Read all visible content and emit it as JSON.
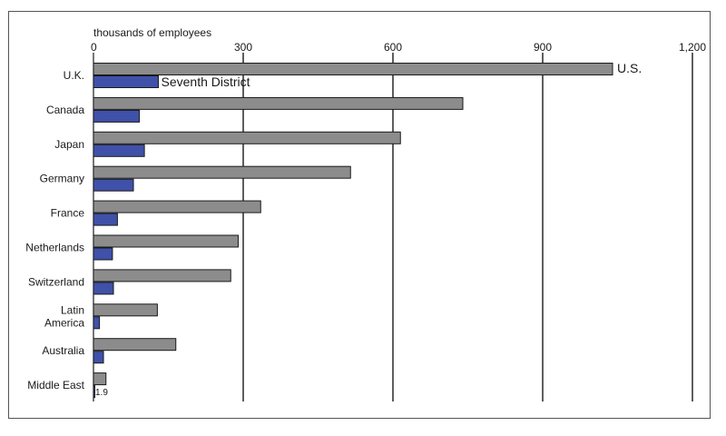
{
  "chart_data": {
    "type": "bar",
    "orientation": "horizontal",
    "axis_title": "thousands of employees",
    "xlim": [
      0,
      1200
    ],
    "ticks": [
      {
        "value": 0,
        "label": "0"
      },
      {
        "value": 300,
        "label": "300"
      },
      {
        "value": 600,
        "label": "600"
      },
      {
        "value": 900,
        "label": "900"
      },
      {
        "value": 1200,
        "label": "1,200"
      }
    ],
    "grid": true,
    "categories": [
      {
        "label_lines": [
          "U.K."
        ]
      },
      {
        "label_lines": [
          "Canada"
        ]
      },
      {
        "label_lines": [
          "Japan"
        ]
      },
      {
        "label_lines": [
          "Germany"
        ]
      },
      {
        "label_lines": [
          "France"
        ]
      },
      {
        "label_lines": [
          "Netherlands"
        ]
      },
      {
        "label_lines": [
          "Switzerland"
        ]
      },
      {
        "label_lines": [
          "Latin",
          "America"
        ]
      },
      {
        "label_lines": [
          "Australia"
        ]
      },
      {
        "label_lines": [
          "Middle East"
        ]
      }
    ],
    "series": [
      {
        "name": "U.S.",
        "color": "#8c8c8c",
        "values": [
          1040,
          740,
          615,
          515,
          335,
          290,
          275,
          128,
          165,
          25
        ]
      },
      {
        "name": "Seventh District",
        "color": "#3f51a8",
        "values": [
          130,
          92,
          102,
          80,
          48,
          38,
          40,
          12,
          20,
          1.9
        ]
      }
    ],
    "value_annotations": [
      {
        "category_index": 9,
        "series_index": 1,
        "text": "1.9"
      }
    ]
  }
}
